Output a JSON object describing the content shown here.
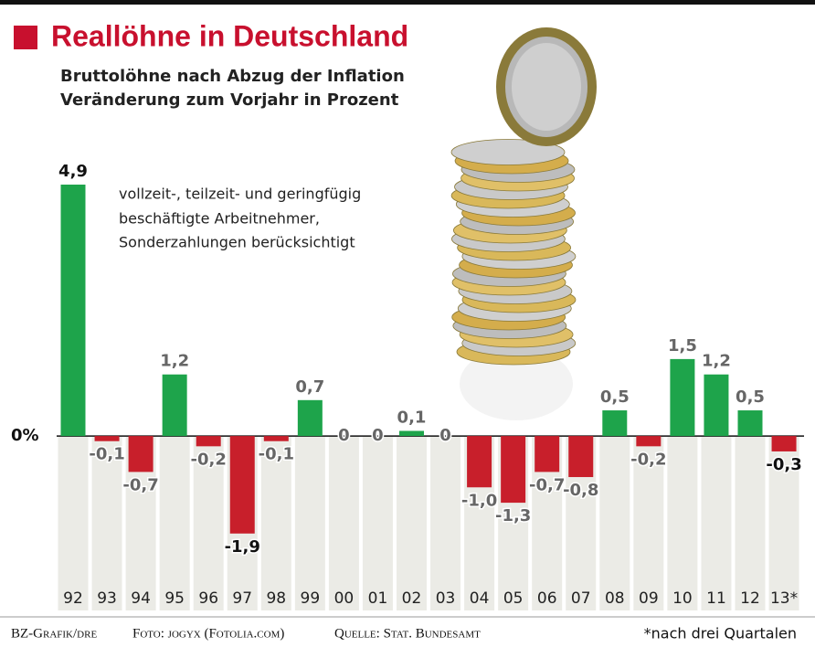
{
  "chart_data": {
    "type": "bar",
    "title": "Reallöhne in Deutschland",
    "subtitle": [
      "Bruttolöhne nach Abzug der Inflation",
      "Veränderung zum Vorjahr in Prozent"
    ],
    "annotation": [
      "vollzeit-, teilzeit- und geringfügig",
      "beschäftigte Arbeitnehmer,",
      "Sonderzahlungen berücksichtigt"
    ],
    "categories": [
      "92",
      "93",
      "94",
      "95",
      "96",
      "97",
      "98",
      "99",
      "00",
      "01",
      "02",
      "03",
      "04",
      "05",
      "06",
      "07",
      "08",
      "09",
      "10",
      "11",
      "12",
      "13*"
    ],
    "values": [
      4.9,
      -0.1,
      -0.7,
      1.2,
      -0.2,
      -1.9,
      -0.1,
      0.7,
      0,
      0,
      0.1,
      0,
      -1.0,
      -1.3,
      -0.7,
      -0.8,
      0.5,
      -0.2,
      1.5,
      1.2,
      0.5,
      -0.3
    ],
    "value_labels": [
      "4,9",
      "-0,1",
      "-0,7",
      "1,2",
      "-0,2",
      "-1,9",
      "-0,1",
      "0,7",
      "0",
      "0",
      "0,1",
      "0",
      "-1,0",
      "-1,3",
      "-0,7",
      "-0,8",
      "0,5",
      "-0,2",
      "1,5",
      "1,2",
      "0,5",
      "-0,3"
    ],
    "color_positive": "#1ea44b",
    "color_negative": "#c81f2b",
    "ylim": [
      -3.4,
      4.9
    ],
    "yticks": [
      {
        "value": 0,
        "label": "0%"
      }
    ],
    "footer": [
      "BZ-Grafik/dre",
      "Foto: jogyx (Fotolia.com)",
      "Quelle: Stat. Bundesamt"
    ],
    "footnote": "*nach drei Quartalen"
  }
}
